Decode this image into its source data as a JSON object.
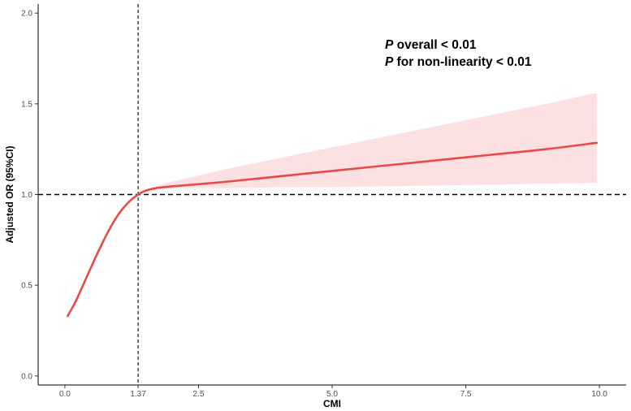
{
  "chart_data": {
    "type": "line",
    "xlabel": "CMI",
    "ylabel": "Adjusted OR (95%CI)",
    "xlim": [
      -0.5,
      10.5
    ],
    "ylim": [
      -0.05,
      2.05
    ],
    "x_ticks": [
      {
        "value": 0.0,
        "label": "0.0"
      },
      {
        "value": 1.37,
        "label": "1.37"
      },
      {
        "value": 2.5,
        "label": "2.5"
      },
      {
        "value": 5.0,
        "label": "5.0"
      },
      {
        "value": 7.5,
        "label": "7.5"
      },
      {
        "value": 10.0,
        "label": "10.0"
      }
    ],
    "y_ticks": [
      {
        "value": 0.0,
        "label": "0.0"
      },
      {
        "value": 0.5,
        "label": "0.5"
      },
      {
        "value": 1.0,
        "label": "1.0"
      },
      {
        "value": 1.5,
        "label": "1.5"
      },
      {
        "value": 2.0,
        "label": "2.0"
      }
    ],
    "reference_lines": {
      "x": 1.37,
      "y": 1.0
    },
    "series": [
      {
        "x": [
          0.05,
          0.2,
          0.4,
          0.6,
          0.8,
          1.0,
          1.2,
          1.37,
          1.5,
          1.7,
          2.0,
          3.0,
          4.0,
          5.0,
          6.0,
          7.0,
          8.0,
          9.0,
          9.95
        ],
        "y": [
          0.33,
          0.41,
          0.54,
          0.67,
          0.79,
          0.89,
          0.96,
          1.0,
          1.02,
          1.035,
          1.045,
          1.07,
          1.1,
          1.13,
          1.16,
          1.19,
          1.22,
          1.25,
          1.285
        ],
        "ci_lower": [
          null,
          null,
          null,
          null,
          null,
          null,
          null,
          null,
          null,
          1.03,
          1.035,
          1.035,
          1.04,
          1.04,
          1.045,
          1.05,
          1.055,
          1.06,
          1.065
        ],
        "ci_upper": [
          null,
          null,
          null,
          null,
          null,
          null,
          null,
          null,
          null,
          1.05,
          1.07,
          1.14,
          1.2,
          1.26,
          1.32,
          1.38,
          1.44,
          1.5,
          1.56
        ]
      }
    ],
    "annotations": [
      {
        "italic": "P",
        "text": " overall < 0.01"
      },
      {
        "italic": "P",
        "text": " for non-linearity < 0.01"
      }
    ],
    "colors": {
      "line": "#e84a4a",
      "ci_band": "#fde0e2",
      "reference": "#000000",
      "axis": "#000000",
      "tick_text": "#4d4d4d"
    },
    "grid": false,
    "legend": "none"
  }
}
